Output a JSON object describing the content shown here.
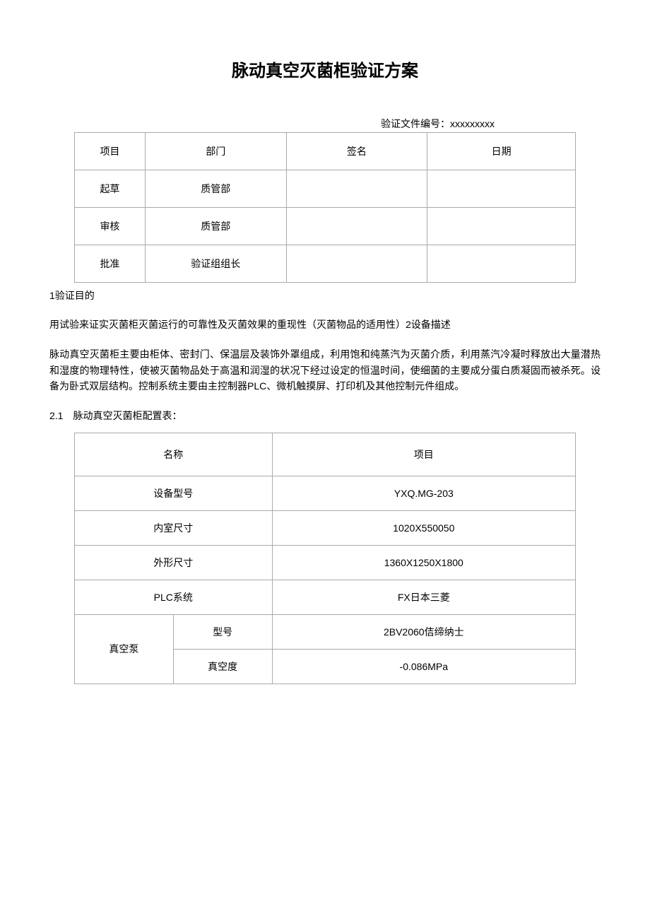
{
  "title": "脉动真空灭菌柜验证方案",
  "doc_number_label": "验证文件编号：xxxxxxxxx",
  "table1": {
    "headers": {
      "col1": "项目",
      "col2": "部门",
      "col3": "签名",
      "col4": "日期"
    },
    "rows": [
      {
        "col1": "起草",
        "col2": "质管部",
        "col3": "",
        "col4": ""
      },
      {
        "col1": "审核",
        "col2": "质管部",
        "col3": "",
        "col4": ""
      },
      {
        "col1": "批准",
        "col2": "验证组组长",
        "col3": "",
        "col4": ""
      }
    ]
  },
  "section1_heading": "1验证目的",
  "section1_text": "用试验来证实灭菌柜灭菌运行的可靠性及灭菌效果的重现性（灭菌物品的适用性）2设备描述",
  "section2_text": "脉动真空灭菌柜主要由柜体、密封门、保温层及装饰外罩组成，利用饱和纯蒸汽为灭菌介质，利用蒸汽冷凝时释放出大量潜热和湿度的物理特性，使被灭菌物品处于高温和润湿的状况下经过设定的恒温时间，使细菌的主要成分蛋白质凝固而被杀死。设备为卧式双层结构。控制系统主要由主控制器PLC、微机触摸屏、打印机及其他控制元件组成。",
  "section2_1_heading": "2.1 脉动真空灭菌柜配置表：",
  "table2": {
    "header": {
      "label": "名称",
      "value": "项目"
    },
    "rows": [
      {
        "label": "设备型号",
        "value": "YXQ.MG-203"
      },
      {
        "label": "内室尺寸",
        "value": "1020X550050"
      },
      {
        "label": "外形尺寸",
        "value": "1360X1250X1800"
      },
      {
        "label": "PLC系统",
        "value": "FX日本三菱"
      }
    ],
    "vacuum_pump": {
      "group_label": "真空泵",
      "rows": [
        {
          "sub_label": "型号",
          "value": "2BV2060佶缔纳士"
        },
        {
          "sub_label": "真空度",
          "value": "-0.086MPa"
        }
      ]
    }
  }
}
